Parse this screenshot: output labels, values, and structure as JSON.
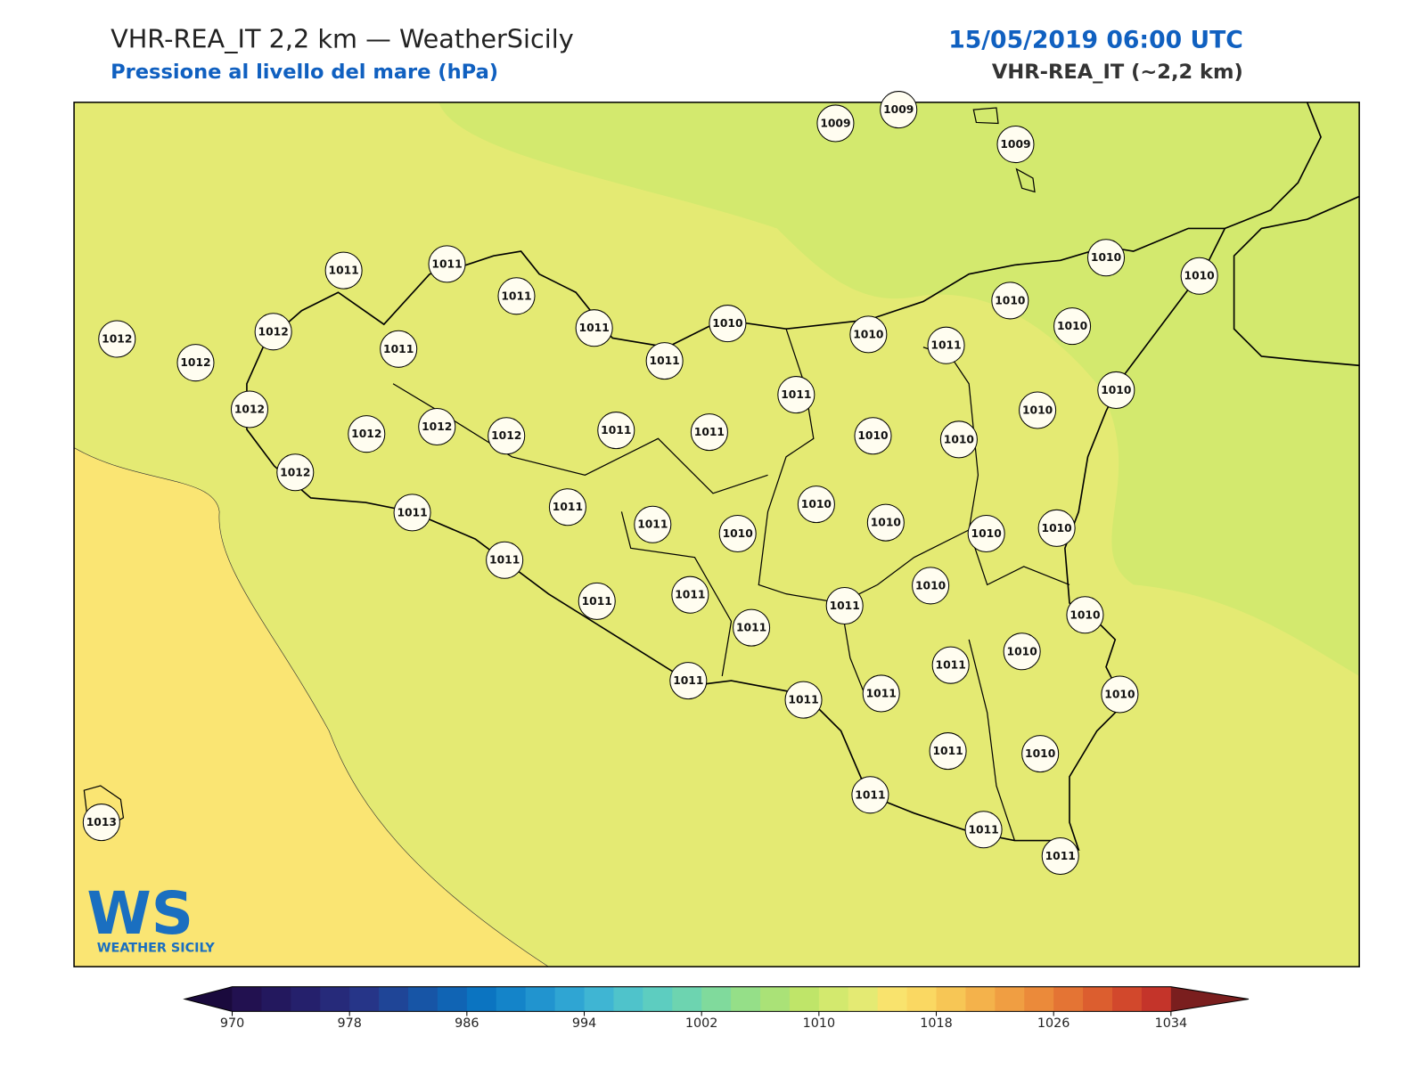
{
  "header": {
    "title": "VHR-REA_IT 2,2 km — WeatherSicily",
    "subtitle": "Pressione al livello del mare (hPa)",
    "date": "15/05/2019 06:00 UTC",
    "model": "VHR-REA_IT (~2,2 km)"
  },
  "stations": [
    1009,
    1009,
    1009,
    1010,
    1010,
    1011,
    1011,
    1011,
    1010,
    1012,
    1012,
    1011,
    1010,
    1010,
    1011,
    1010,
    1012,
    1011,
    1011,
    1011,
    1010,
    1010,
    1012,
    1012,
    1012,
    1012,
    1011,
    1011,
    1010,
    1010,
    1012,
    1011,
    1011,
    1011,
    1010,
    1010,
    1010,
    1010,
    1010,
    1011,
    1011,
    1011,
    1011,
    1011,
    1010,
    1010,
    1010,
    1011,
    1011,
    1011,
    1011,
    1010,
    1011,
    1010,
    1011,
    1011,
    1011,
    1013
  ],
  "colorbar": {
    "lim": [
      970,
      1034
    ],
    "ticks": [
      970,
      978,
      986,
      994,
      1002,
      1010,
      1018,
      1026,
      1034
    ],
    "colors": [
      "#221150",
      "#23185e",
      "#25206c",
      "#262a7a",
      "#263588",
      "#1f4597",
      "#1755a6",
      "#1064b4",
      "#0b74c1",
      "#1484c9",
      "#2194cf",
      "#2fa5d3",
      "#3fb5d3",
      "#4fc3cb",
      "#5dcdc0",
      "#6dd4b0",
      "#80da9c",
      "#95df88",
      "#aae277",
      "#bfe569",
      "#d3e96e",
      "#e4ea73",
      "#f9e36d",
      "#fad862",
      "#f7c655",
      "#f4b24b",
      "#f09e42",
      "#eb8a3a",
      "#e47434",
      "#dc5e2f",
      "#d2482c",
      "#c4342a"
    ],
    "under": "#1a0a3d",
    "over": "#7a1e1e"
  },
  "logo": {
    "mark": "WS",
    "name": "WEATHER SICILY"
  }
}
